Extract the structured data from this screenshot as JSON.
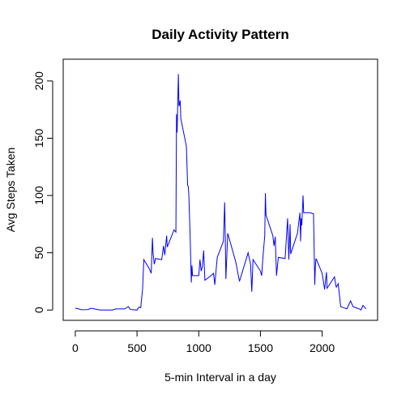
{
  "chart_data": {
    "type": "line",
    "title": "Daily Activity Pattern",
    "x_label": "5-min Interval in a day",
    "y_label": "Avg Steps Taken",
    "x": [
      0,
      50,
      100,
      130,
      200,
      300,
      330,
      400,
      430,
      445,
      500,
      515,
      530,
      545,
      555,
      600,
      615,
      625,
      630,
      640,
      650,
      700,
      715,
      725,
      740,
      745,
      800,
      815,
      820,
      825,
      835,
      840,
      845,
      850,
      855,
      900,
      910,
      915,
      920,
      930,
      940,
      945,
      950,
      1000,
      1010,
      1020,
      1030,
      1040,
      1050,
      1100,
      1120,
      1130,
      1150,
      1200,
      1210,
      1215,
      1220,
      1235,
      1300,
      1330,
      1400,
      1420,
      1430,
      1440,
      1500,
      1510,
      1520,
      1535,
      1540,
      1545,
      1600,
      1610,
      1620,
      1630,
      1645,
      1700,
      1720,
      1730,
      1740,
      1745,
      1800,
      1820,
      1825,
      1830,
      1835,
      1845,
      1850,
      1900,
      1930,
      1940,
      1945,
      1950,
      2000,
      2020,
      2035,
      2040,
      2100,
      2110,
      2115,
      2130,
      2150,
      2200,
      2230,
      2250,
      2300,
      2315,
      2330,
      2340,
      2355
    ],
    "series": [
      {
        "color": "#0000ff",
        "values": [
          1.7,
          0.3,
          0.4,
          1.5,
          0,
          0,
          1,
          1,
          3,
          0.5,
          0,
          2.5,
          2,
          18,
          44,
          36,
          32,
          63,
          50,
          40,
          45,
          44,
          56,
          48,
          65,
          55,
          70,
          68,
          171,
          155,
          206,
          178,
          180,
          183,
          167,
          143,
          109,
          108,
          100,
          66,
          24,
          39,
          30,
          30,
          44,
          34,
          38,
          52,
          26,
          30,
          32,
          22,
          46,
          60,
          94,
          65,
          27,
          67,
          42,
          25,
          50,
          40,
          16,
          44,
          34,
          30,
          46,
          65,
          102,
          83,
          65,
          56,
          64,
          30,
          46,
          45,
          80,
          44,
          75,
          49,
          67,
          85,
          60,
          80,
          74,
          100,
          85,
          85,
          84,
          22,
          38,
          45,
          32,
          18,
          33,
          19,
          29,
          22,
          20,
          23,
          3,
          1,
          8,
          3,
          1,
          0,
          4,
          3,
          1
        ]
      }
    ],
    "xlim": [
      -98,
      2449
    ],
    "ylim": [
      -9,
      219
    ],
    "xticks": [
      0,
      500,
      1000,
      1500,
      2000
    ],
    "yticks": [
      0,
      50,
      100,
      150,
      200
    ]
  }
}
